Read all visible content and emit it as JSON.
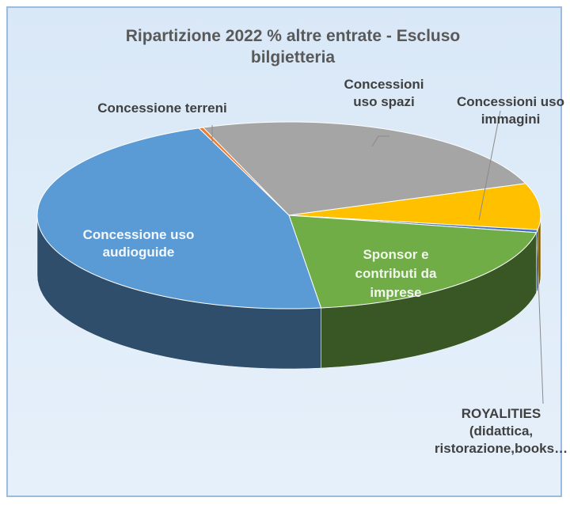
{
  "chart_data": {
    "type": "pie3d",
    "title": "Ripartizione 2022 % altre entrate - Escluso bilgietteria",
    "categories": [
      "Concessione terreni",
      "Concessioni uso spazi",
      "Concessioni uso immagini",
      "ROYALITIES (didattica, ristorazione,books…",
      "Sponsor e contributi da imprese",
      "Concessione uso audioguide"
    ],
    "values": [
      0.3,
      25,
      8,
      0.5,
      20,
      46.2
    ],
    "colors": [
      "#ed7d31",
      "#a5a5a5",
      "#ffc000",
      "#4472c4",
      "#70ad47",
      "#5b9bd5"
    ]
  }
}
